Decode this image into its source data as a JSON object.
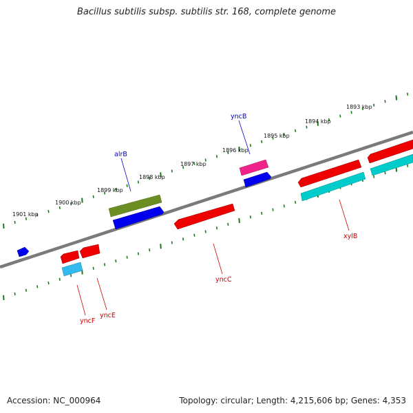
{
  "title": "Bacillus subtilis subsp. subtilis str. 168, complete genome",
  "footer": {
    "accession": "Accession: NC_000964",
    "summary": "Topology: circular; Length: 4,215,606 bp; Genes: 4,353"
  },
  "scale_labels": [
    "1901 kbp",
    "1900 kbp",
    "1899 kbp",
    "1898 kbp",
    "1897 kbp",
    "1896 kbp",
    "1895 kbp",
    "1894 kbp",
    "1893 kbp"
  ],
  "genes": [
    {
      "name": "alrB",
      "strand": "+",
      "color": "#0000cc"
    },
    {
      "name": "yncB",
      "strand": "+",
      "color": "#0000cc"
    },
    {
      "name": "yncF",
      "strand": "-",
      "color": "#cc0000"
    },
    {
      "name": "yncE",
      "strand": "-",
      "color": "#cc0000"
    },
    {
      "name": "yncC",
      "strand": "-",
      "color": "#cc0000"
    },
    {
      "name": "xylB",
      "strand": "-",
      "color": "#cc0000"
    }
  ],
  "colors": {
    "backbone": "#808080",
    "ticks": "#1a7a1a",
    "forward_cds": "#0000ee",
    "forward_gene": "#6b8e23",
    "forward_rna": "#ee2288",
    "reverse_cds": "#ee0000",
    "reverse_gene": "#00cccc",
    "reverse_small": "#33bbee"
  }
}
